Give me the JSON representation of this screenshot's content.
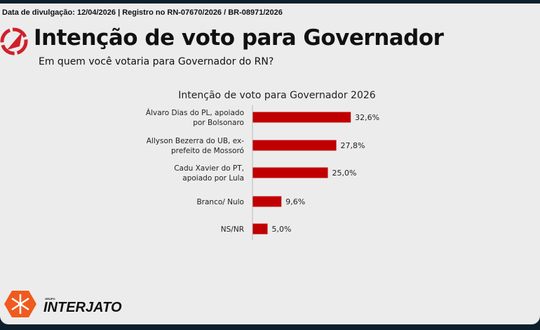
{
  "header": {
    "meta": "Data de divulgação: 12/04/2026 | Registro no RN-07670/2026 / BR-08971/2026",
    "title": "Intenção de voto para Governador",
    "subtitle": "Em quem você votaria para Governador do RN?"
  },
  "chart_data": {
    "type": "bar",
    "orientation": "horizontal",
    "title": "Intenção de voto para Governador 2026",
    "categories": [
      [
        "Álvaro Dias do PL, apoiado",
        "por Bolsonaro"
      ],
      [
        "Allyson Bezerra do UB, ex-",
        "prefeito de Mossoró"
      ],
      [
        "Cadu Xavier do PT,",
        "apoiado por Lula"
      ],
      [
        "Branco/ Nulo"
      ],
      [
        "NS/NR"
      ]
    ],
    "values": [
      32.6,
      27.8,
      25.0,
      9.6,
      5.0
    ],
    "data_labels": [
      "32,6%",
      "27,8%",
      "25,0%",
      "9,6%",
      "5,0%"
    ],
    "bar_color": "#c00000",
    "grid": false
  },
  "footer": {
    "brand_prefix": "GRUPO",
    "brand": "INTERJATO",
    "brand_color": "#f05a1e"
  }
}
